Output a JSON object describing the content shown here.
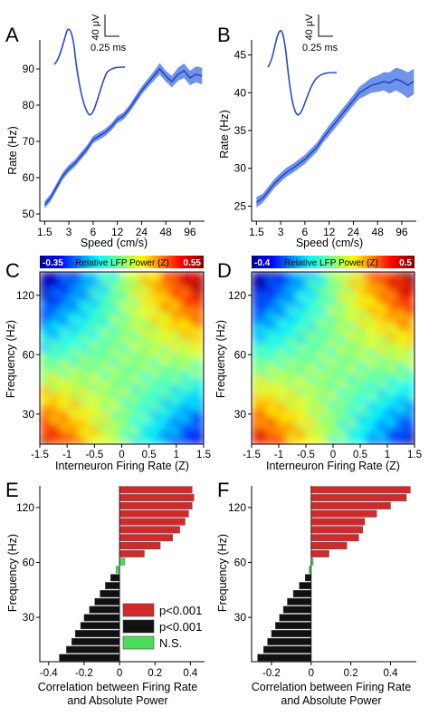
{
  "figure": {
    "colors": {
      "line": "#1f3fbf",
      "band": "#6f93e8",
      "red": "#d22a2a",
      "black": "#111111",
      "green": "#4ddc5a"
    }
  },
  "chart_data": [
    {
      "panel": "A",
      "type": "line",
      "xlabel": "Speed (cm/s)",
      "ylabel": "Rate (Hz)",
      "xticks": [
        "1.5",
        "3",
        "6",
        "12",
        "24",
        "48",
        "96"
      ],
      "yticks": [
        "50",
        "60",
        "70",
        "80",
        "90"
      ],
      "xlim_log2": [
        -0.2,
        6.6
      ],
      "ylim": [
        48,
        98
      ],
      "x": [
        0,
        0.25,
        0.5,
        0.75,
        1,
        1.25,
        1.5,
        1.75,
        2,
        2.25,
        2.5,
        2.75,
        3,
        3.25,
        3.5,
        3.75,
        4,
        4.25,
        4.5,
        4.75,
        5,
        5.25,
        5.5,
        5.75,
        6,
        6.25,
        6.5
      ],
      "y": [
        52.5,
        54.5,
        57.5,
        60.5,
        62.5,
        64,
        66,
        68,
        70.5,
        71.5,
        72.5,
        74,
        76,
        77,
        79,
        81.5,
        84,
        86,
        88,
        90,
        88,
        86.5,
        88.5,
        89.5,
        87.5,
        88.5,
        88
      ],
      "err": [
        1,
        1,
        1,
        1,
        1,
        1,
        1,
        1,
        1,
        1,
        1,
        1,
        1,
        1,
        1,
        1.1,
        1.1,
        1.2,
        1.3,
        1.6,
        1.5,
        1.6,
        1.8,
        2,
        2,
        2.2,
        2.3
      ],
      "inset": {
        "amp_label": "40 μV",
        "time_label": "0.25 ms"
      }
    },
    {
      "panel": "B",
      "type": "line",
      "xlabel": "Speed (cm/s)",
      "ylabel": "Rate (Hz)",
      "xticks": [
        "1.5",
        "3",
        "6",
        "12",
        "24",
        "48",
        "96"
      ],
      "yticks": [
        "25",
        "30",
        "35",
        "40",
        "45"
      ],
      "xlim_log2": [
        -0.2,
        6.6
      ],
      "ylim": [
        23,
        47
      ],
      "x": [
        0,
        0.25,
        0.5,
        0.75,
        1,
        1.25,
        1.5,
        1.75,
        2,
        2.25,
        2.5,
        2.75,
        3,
        3.25,
        3.5,
        3.75,
        4,
        4.25,
        4.5,
        4.75,
        5,
        5.25,
        5.5,
        5.75,
        6,
        6.25,
        6.5
      ],
      "y": [
        25.5,
        26,
        27,
        28,
        28.8,
        29.5,
        30,
        30.6,
        31.2,
        32,
        32.8,
        34,
        35,
        36,
        37,
        38,
        39,
        40,
        40.5,
        41,
        41.2,
        41.5,
        41.3,
        41.8,
        41.5,
        41,
        41.5
      ],
      "err": [
        0.7,
        0.6,
        0.6,
        0.6,
        0.6,
        0.6,
        0.6,
        0.6,
        0.6,
        0.6,
        0.6,
        0.6,
        0.7,
        0.7,
        0.7,
        0.7,
        0.7,
        0.8,
        0.9,
        1,
        1.1,
        1.2,
        1.4,
        1.5,
        1.6,
        1.7,
        1.7
      ],
      "inset": {
        "amp_label": "40 μV",
        "time_label": "0.25 ms"
      }
    },
    {
      "panel": "C",
      "type": "heatmap",
      "colorbar": {
        "min": "-0.35",
        "max": "0.55",
        "label": "Relative LFP Power (Z)"
      },
      "xlabel": "Interneuron Firing Rate (Z)",
      "ylabel": "Frequency (Hz)",
      "xticks": [
        "-1.5",
        "-1",
        "-0.5",
        "0",
        "0.5",
        "1",
        "1.5"
      ],
      "yticks": [
        "30",
        "60",
        "120"
      ],
      "xlim": [
        -1.5,
        1.5
      ],
      "ylim_log2": [
        4.4,
        7.3
      ]
    },
    {
      "panel": "D",
      "type": "heatmap",
      "colorbar": {
        "min": "-0.4",
        "max": "0.5",
        "label": "Relative LFP Power (Z)"
      },
      "xlabel": "Interneuron Firing Rate (Z)",
      "ylabel": "Frequency (Hz)",
      "xticks": [
        "-1.5",
        "-1",
        "-0.5",
        "0",
        "0.5",
        "1",
        "1.5"
      ],
      "yticks": [
        "30",
        "60",
        "120"
      ],
      "xlim": [
        -1.5,
        1.5
      ],
      "ylim_log2": [
        4.4,
        7.3
      ]
    },
    {
      "panel": "E",
      "type": "bar",
      "xlabel": "Correlation between Firing Rate and Absolute Power",
      "ylabel": "Frequency (Hz)",
      "xticks": [
        "-0.4",
        "-0.2",
        "0",
        "0.2",
        "0.4"
      ],
      "yticks": [
        "30",
        "60",
        "120"
      ],
      "xlim": [
        -0.45,
        0.48
      ],
      "legend": [
        "p<0.001",
        "p<0.001",
        "N.S."
      ],
      "values": [
        -0.34,
        -0.3,
        -0.27,
        -0.25,
        -0.22,
        -0.2,
        -0.17,
        -0.14,
        -0.11,
        -0.08,
        -0.05,
        -0.02,
        0.03,
        0.14,
        0.23,
        0.3,
        0.34,
        0.37,
        0.39,
        0.41,
        0.42,
        0.41
      ],
      "groups": [
        "neg",
        "neg",
        "neg",
        "neg",
        "neg",
        "neg",
        "neg",
        "neg",
        "neg",
        "neg",
        "neg",
        "ns",
        "ns",
        "pos",
        "pos",
        "pos",
        "pos",
        "pos",
        "pos",
        "pos",
        "pos",
        "pos"
      ]
    },
    {
      "panel": "F",
      "type": "bar",
      "xlabel": "Correlation between Firing Rate and Absolute Power",
      "ylabel": "Frequency (Hz)",
      "xticks": [
        "-0.2",
        "0",
        "0.2",
        "0.4"
      ],
      "yticks": [
        "30",
        "60",
        "120"
      ],
      "xlim": [
        -0.3,
        0.53
      ],
      "values": [
        -0.27,
        -0.24,
        -0.22,
        -0.2,
        -0.18,
        -0.16,
        -0.14,
        -0.12,
        -0.09,
        -0.06,
        -0.03,
        -0.01,
        0.01,
        0.09,
        0.18,
        0.24,
        0.26,
        0.27,
        0.33,
        0.4,
        0.48,
        0.5
      ],
      "groups": [
        "neg",
        "neg",
        "neg",
        "neg",
        "neg",
        "neg",
        "neg",
        "neg",
        "neg",
        "neg",
        "neg",
        "ns",
        "ns",
        "pos",
        "pos",
        "pos",
        "pos",
        "pos",
        "pos",
        "pos",
        "pos",
        "pos"
      ]
    }
  ]
}
